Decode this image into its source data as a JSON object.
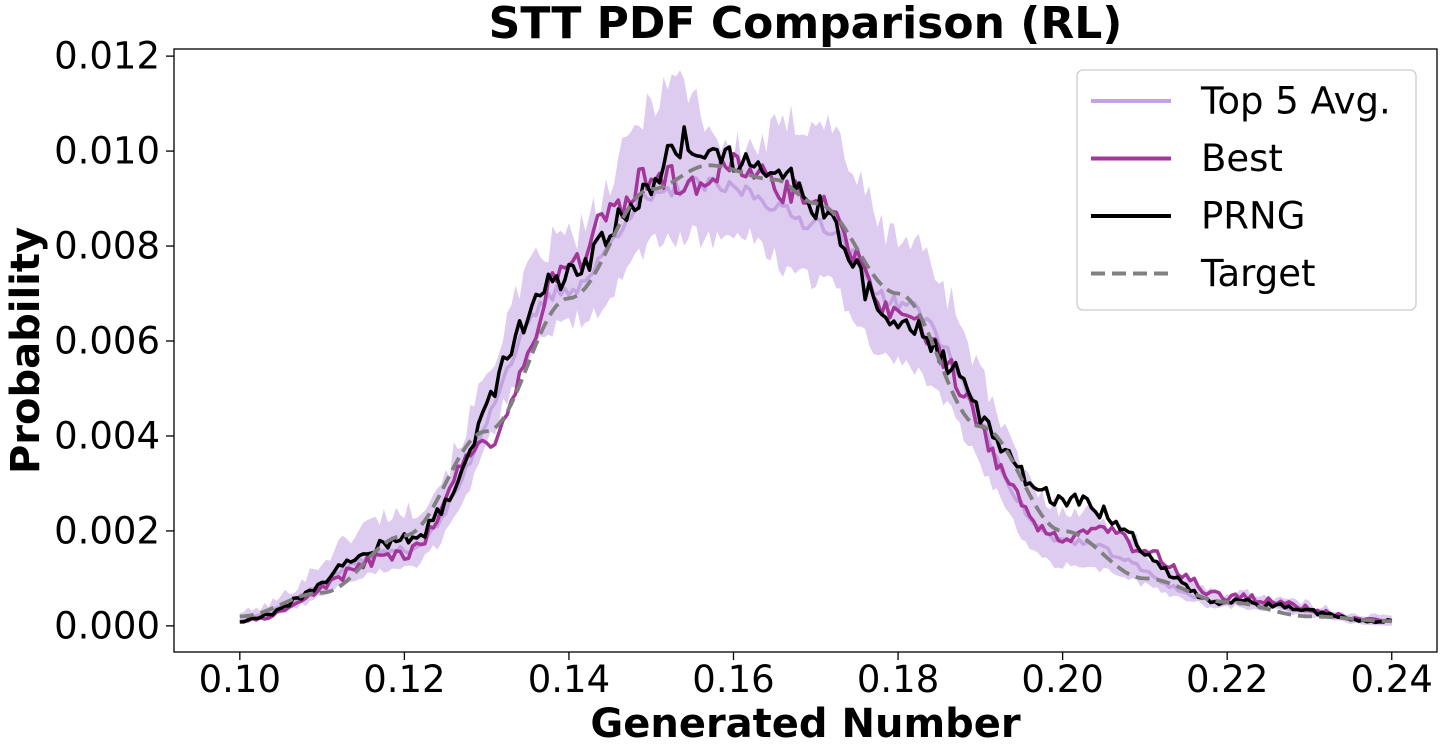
{
  "chart_data": {
    "type": "line",
    "title": "STT PDF Comparison (RL)",
    "xlabel": "Generated Number",
    "ylabel": "Probability",
    "xlim": [
      0.092,
      0.2455
    ],
    "ylim": [
      -0.00055,
      0.01215
    ],
    "xticks": [
      0.1,
      0.12,
      0.14,
      0.16,
      0.18,
      0.2,
      0.22,
      0.24
    ],
    "xtick_labels": [
      "0.10",
      "0.12",
      "0.14",
      "0.16",
      "0.18",
      "0.20",
      "0.22",
      "0.24"
    ],
    "yticks": [
      0.0,
      0.002,
      0.004,
      0.006,
      0.008,
      0.01,
      0.012
    ],
    "ytick_labels": [
      "0.000",
      "0.002",
      "0.004",
      "0.006",
      "0.008",
      "0.010",
      "0.012"
    ],
    "grid": false,
    "legend_position": "top-right",
    "distribution": {
      "x_start": 0.1,
      "x_end": 0.24,
      "points": 281
    },
    "series": [
      {
        "name": "Top 5 Avg.",
        "color": "#C3A3E0",
        "style": "solid",
        "band_color": "#C8A8E6",
        "x": [
          0.1,
          0.12,
          0.14,
          0.15,
          0.155,
          0.16,
          0.17,
          0.18,
          0.2,
          0.22,
          0.24
        ],
        "y": [
          0.0002,
          0.0016,
          0.0071,
          0.009,
          0.0093,
          0.0092,
          0.0085,
          0.0068,
          0.0018,
          0.0005,
          0.0001
        ],
        "band": {
          "x": [
            0.1,
            0.12,
            0.14,
            0.153,
            0.16,
            0.17,
            0.18,
            0.2,
            0.22,
            0.24
          ],
          "upper": [
            0.0003,
            0.0024,
            0.0082,
            0.0115,
            0.01,
            0.0107,
            0.0082,
            0.0025,
            0.0007,
            0.0002
          ],
          "lower": [
            0.0001,
            0.0012,
            0.0064,
            0.0082,
            0.0082,
            0.0073,
            0.0055,
            0.0013,
            0.0004,
            0.0
          ]
        }
      },
      {
        "name": "Best",
        "color": "#A2369A",
        "style": "solid",
        "x": [
          0.1,
          0.12,
          0.13,
          0.14,
          0.145,
          0.15,
          0.155,
          0.16,
          0.17,
          0.18,
          0.2,
          0.205,
          0.21,
          0.22,
          0.24
        ],
        "y": [
          0.0001,
          0.0015,
          0.0039,
          0.0076,
          0.0086,
          0.0095,
          0.0094,
          0.0097,
          0.009,
          0.0065,
          0.0019,
          0.0021,
          0.0015,
          0.0006,
          0.0001
        ]
      },
      {
        "name": "PRNG",
        "color": "#000000",
        "style": "solid",
        "x": [
          0.1,
          0.12,
          0.14,
          0.15,
          0.153,
          0.16,
          0.165,
          0.17,
          0.18,
          0.2,
          0.22,
          0.24
        ],
        "y": [
          0.0001,
          0.0018,
          0.0074,
          0.0092,
          0.0102,
          0.0099,
          0.0097,
          0.0088,
          0.0063,
          0.0027,
          0.0005,
          0.0001
        ]
      },
      {
        "name": "Target",
        "color": "#808080",
        "style": "dashed",
        "x": [
          0.1,
          0.11,
          0.12,
          0.13,
          0.14,
          0.15,
          0.157,
          0.165,
          0.17,
          0.18,
          0.19,
          0.2,
          0.21,
          0.22,
          0.23,
          0.24
        ],
        "y": [
          0.0002,
          0.0007,
          0.0019,
          0.0041,
          0.0069,
          0.0092,
          0.0097,
          0.0094,
          0.0089,
          0.007,
          0.0042,
          0.002,
          0.001,
          0.0005,
          0.0002,
          0.0001
        ]
      }
    ]
  }
}
